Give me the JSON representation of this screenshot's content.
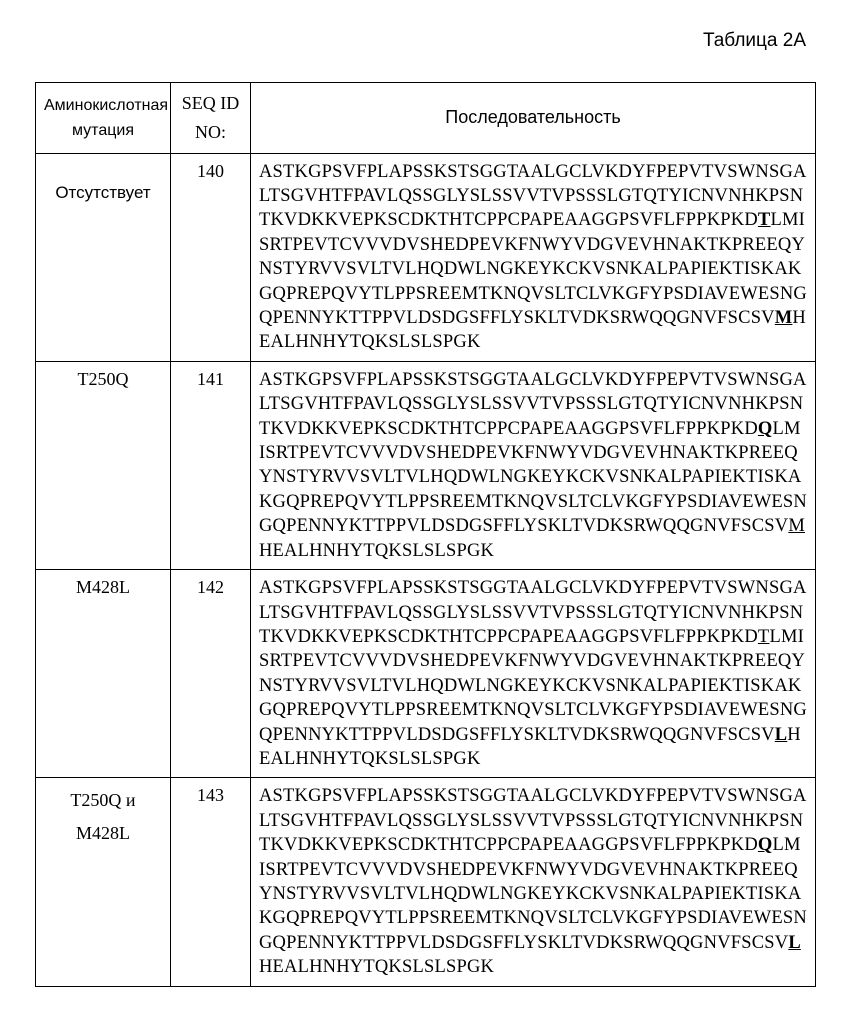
{
  "caption": "Таблица 2A",
  "headers": {
    "mutation": "Аминокислотная мутация",
    "seqid_l1": "SEQ ID",
    "seqid_l2": "NO:",
    "sequence": "Последовательность"
  },
  "rows": [
    {
      "mutation": "Отсутствует",
      "mutation_sans": true,
      "seqid": "140",
      "seq_parts": [
        {
          "t": "ASTKGPSVFPLAPSSKSTSGGTAALGCLVKDYFPEPVTVSWNSGALTSGVHTFPAVLQSSGLYSLSSVVTVPSSSLGTQTYICNVNHKPSNTKVDKKVEPKSCDKTHTCPPCPAPEAAGGPSVFLFPPKPKD"
        },
        {
          "t": "T",
          "u": true,
          "b": true
        },
        {
          "t": "LMISRTPEVTCVVVDVSHEDPEVKFNWYVDGVEVHNAKTKPREEQYNSTYRVVSVLTVLHQDWLNGKEYKCKVSNKALPAPIEKTISKAKGQPREPQVYTLPPSREEMTKNQVSLTCLVKGFYPSDIAVEWESNGQPENNYKTTPPVLDSDGSFFLYSKLTVDKSRWQQGNVFSCSV"
        },
        {
          "t": "M",
          "u": true,
          "b": true
        },
        {
          "t": "HEALHNHYTQKSLSLSPGK"
        }
      ]
    },
    {
      "mutation": "T250Q",
      "mutation_sans": false,
      "seqid": "141",
      "seq_parts": [
        {
          "t": "ASTKGPSVFPLAPSSKSTSGGTAALGCLVKDYFPEPVTVSWNSGALTSGVHTFPAVLQSSGLYSLSSVVTVPSSSLGTQTYICNVNHKPSNTKVDKKVEPKSCDKTHTCPPCPAPEAAGGPSVFLFPPKPKD"
        },
        {
          "t": "Q",
          "u": true,
          "b": true
        },
        {
          "t": "LMISRTPEVTCVVVDVSHEDPEVKFNWYVDGVEVHNAKTKPREEQYNSTYRVVSVLTVLHQDWLNGKEYKCKVSNKALPAPIEKTISKAKGQPREPQVYTLPPSREEMTKNQVSLTCLVKGFYPSDIAVEWESNGQPENNYKTTPPVLDSDGSFFLYSKLTVDKSRWQQGNVFSCSV"
        },
        {
          "t": "M",
          "u": true,
          "b": false
        },
        {
          "t": "HEALHNHYTQKSLSLSPGK"
        }
      ]
    },
    {
      "mutation": "M428L",
      "mutation_sans": false,
      "seqid": "142",
      "seq_parts": [
        {
          "t": "ASTKGPSVFPLAPSSKSTSGGTAALGCLVKDYFPEPVTVSWNSGALTSGVHTFPAVLQSSGLYSLSSVVTVPSSSLGTQTYICNVNHKPSNTKVDKKVEPKSCDKTHTCPPCPAPEAAGGPSVFLFPPKPKD"
        },
        {
          "t": "T",
          "u": true,
          "b": false
        },
        {
          "t": "LMISRTPEVTCVVVDVSHEDPEVKFNWYVDGVEVHNAKTKPREEQYNSTYRVVSVLTVLHQDWLNGKEYKCKVSNKALPAPIEKTISKAKGQPREPQVYTLPPSREEMTKNQVSLTCLVKGFYPSDIAVEWESNGQPENNYKTTPPVLDSDGSFFLYSKLTVDKSRWQQGNVFSCSV"
        },
        {
          "t": "L",
          "u": true,
          "b": true
        },
        {
          "t": "HEALHNHYTQKSLSLSPGK"
        }
      ]
    },
    {
      "mutation": "T250Q  и M428L",
      "mutation_sans": false,
      "seqid": "143",
      "seq_parts": [
        {
          "t": "ASTKGPSVFPLAPSSKSTSGGTAALGCLVKDYFPEPVTVSWNSGALTSGVHTFPAVLQSSGLYSLSSVVTVPSSSLGTQTYICNVNHKPSNTKVDKKVEPKSCDKTHTCPPCPAPEAAGGPSVFLFPPKPKD"
        },
        {
          "t": "Q",
          "u": true,
          "b": true
        },
        {
          "t": "LMISRTPEVTCVVVDVSHEDPEVKFNWYVDGVEVHNAKTKPREEQYNSTYRVVSVLTVLHQDWLNGKEYKCKVSNKALPAPIEKTISKAKGQPREPQVYTLPPSREEMTKNQVSLTCLVKGFYPSDIAVEWESNGQPENNYKTTPPVLDSDGSFFLYSKLTVDKSRWQQGNVFSCSV"
        },
        {
          "t": "L",
          "u": true,
          "b": true
        },
        {
          "t": "HEALHNHYTQKSLSLSPGK"
        }
      ]
    }
  ]
}
